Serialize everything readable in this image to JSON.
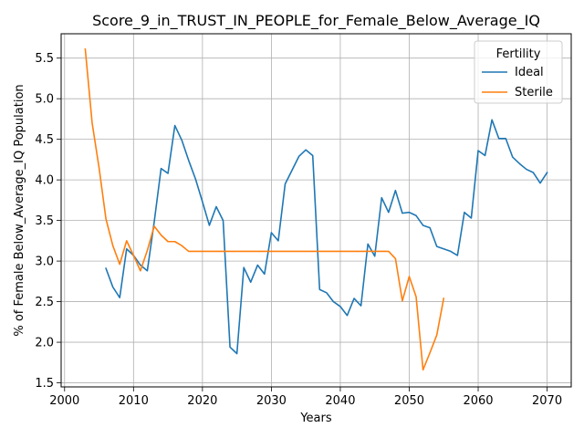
{
  "chart_data": {
    "type": "line",
    "title": "Score_9_in_TRUST_IN_PEOPLE_for_Female_Below_Average_IQ",
    "xlabel": "Years",
    "ylabel": "% of Female Below_Average_IQ Population",
    "xlim": [
      1999.5,
      2073.5
    ],
    "ylim": [
      1.45,
      5.8
    ],
    "x_ticks": [
      2000,
      2010,
      2020,
      2030,
      2040,
      2050,
      2060,
      2070
    ],
    "y_ticks": [
      1.5,
      2.0,
      2.5,
      3.0,
      3.5,
      4.0,
      4.5,
      5.0,
      5.5
    ],
    "x_tick_labels": [
      "2000",
      "2010",
      "2020",
      "2030",
      "2040",
      "2050",
      "2060",
      "2070"
    ],
    "y_tick_labels": [
      "1.5",
      "2.0",
      "2.5",
      "3.0",
      "3.5",
      "4.0",
      "4.5",
      "5.0",
      "5.5"
    ],
    "grid": true,
    "legend": {
      "title": "Fertility",
      "position": "top-right"
    },
    "series": [
      {
        "name": "Ideal",
        "color": "#1f77b4",
        "x": [
          2006,
          2007,
          2008,
          2009,
          2010,
          2011,
          2012,
          2013,
          2014,
          2015,
          2016,
          2017,
          2018,
          2019,
          2020,
          2021,
          2022,
          2023,
          2024,
          2025,
          2026,
          2027,
          2028,
          2029,
          2030,
          2031,
          2032,
          2033,
          2034,
          2035,
          2036,
          2037,
          2038,
          2039,
          2040,
          2041,
          2042,
          2043,
          2044,
          2045,
          2046,
          2047,
          2048,
          2049,
          2050,
          2051,
          2052,
          2053,
          2054,
          2055,
          2056,
          2057,
          2058,
          2059,
          2060,
          2061,
          2062,
          2063,
          2064,
          2065,
          2066,
          2067,
          2068,
          2069,
          2070
        ],
        "values": [
          2.91,
          2.68,
          2.55,
          3.15,
          3.07,
          2.95,
          2.88,
          3.48,
          4.14,
          4.08,
          4.67,
          4.49,
          4.24,
          4.01,
          3.73,
          3.44,
          3.67,
          3.5,
          1.94,
          1.86,
          2.92,
          2.74,
          2.95,
          2.84,
          3.35,
          3.25,
          3.95,
          4.12,
          4.29,
          4.37,
          4.3,
          2.65,
          2.61,
          2.5,
          2.44,
          2.33,
          2.54,
          2.45,
          3.21,
          3.06,
          3.78,
          3.6,
          3.87,
          3.59,
          3.6,
          3.56,
          3.44,
          3.41,
          3.18,
          3.15,
          3.12,
          3.07,
          3.6,
          3.53,
          4.36,
          4.3,
          4.74,
          4.51,
          4.51,
          4.28,
          4.2,
          4.13,
          4.09,
          3.96,
          4.09
        ]
      },
      {
        "name": "Sterile",
        "color": "#ff7f0e",
        "x": [
          2003,
          2004,
          2005,
          2006,
          2007,
          2008,
          2009,
          2010,
          2011,
          2012,
          2013,
          2014,
          2015,
          2016,
          2017,
          2018,
          2019,
          2020,
          2021,
          2022,
          2023,
          2024,
          2025,
          2026,
          2027,
          2028,
          2029,
          2030,
          2031,
          2032,
          2033,
          2034,
          2035,
          2036,
          2037,
          2038,
          2039,
          2040,
          2041,
          2042,
          2043,
          2044,
          2045,
          2046,
          2047,
          2048,
          2049,
          2050,
          2051,
          2052,
          2053,
          2054,
          2055
        ],
        "values": [
          5.61,
          4.7,
          4.15,
          3.52,
          3.19,
          2.96,
          3.25,
          3.07,
          2.88,
          3.13,
          3.43,
          3.32,
          3.24,
          3.24,
          3.19,
          3.12,
          3.12,
          3.12,
          3.12,
          3.12,
          3.12,
          3.12,
          3.12,
          3.12,
          3.12,
          3.12,
          3.12,
          3.12,
          3.12,
          3.12,
          3.12,
          3.12,
          3.12,
          3.12,
          3.12,
          3.12,
          3.12,
          3.12,
          3.12,
          3.12,
          3.12,
          3.12,
          3.12,
          3.12,
          3.12,
          3.03,
          2.51,
          2.81,
          2.56,
          1.66,
          1.87,
          2.09,
          2.54
        ]
      }
    ]
  }
}
